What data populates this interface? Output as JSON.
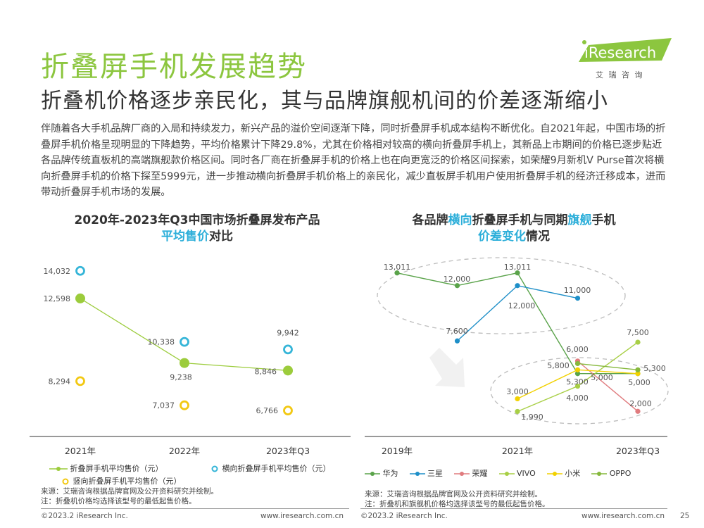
{
  "header": {
    "title": "折叠屏手机发展趋势",
    "subtitle": "折叠机价格逐步亲民化，其与品牌旗舰机间的价差逐渐缩小",
    "logo_text": "iResearch",
    "logo_sub": "艾 瑞 咨 询"
  },
  "body": {
    "paragraph": "伴随着各大手机品牌厂商的入局和持续发力，新兴产品的溢价空间逐渐下降，同时折叠屏手机成本结构不断优化。自2021年起，中国市场的折叠屏手机价格呈现明显的下降趋势，平均价格累计下降29.8%，尤其在价格相对较高的横向折叠屏手机上，其新品上市期间的价格已逐步贴近各品牌传统直板机的高端旗舰款价格区间。同时各厂商在折叠屏手机的价格上也在向更宽泛的价格区间探索，如荣耀9月新机V Purse首次将横向折叠屏手机的价格下探至5999元，进一步推动横向折叠屏手机价格上的亲民化，减少直板屏手机用户使用折叠屏手机的经济迁移成本，进而带动折叠屏手机市场的发展。"
  },
  "left_chart": {
    "title_line1": "2020年-2023年Q3中国市场折叠屏发布产品",
    "title_hl": "平均售价",
    "title_rest": "对比",
    "legend": [
      "折叠屏手机平均售价（元）",
      "横向折叠屏手机平均售价（元）",
      "竖向折叠屏手机平均售价（元）"
    ],
    "note_source": "来源：艾瑞咨询根据品牌官网及公开资料研究并绘制。",
    "note_remark": "注：折叠机价格均选择该型号的最低起售价格。"
  },
  "right_chart": {
    "title_pre": "各品牌",
    "title_hl1": "横向",
    "title_mid": "折叠屏手机与同期",
    "title_hl2": "旗舰",
    "title_post": "手机",
    "title_hl3": "价差变化",
    "title_end": "情况",
    "note_source": "来源：艾瑞咨询根据品牌官网及公开资料研究并绘制。",
    "note_remark": "注：折叠机和旗舰机价格均选择该型号的最低起售价格。"
  },
  "chart_data": [
    {
      "type": "line",
      "categories": [
        "2021年",
        "2022年",
        "2023年Q3"
      ],
      "series": [
        {
          "name": "折叠屏手机平均售价（元）",
          "color": "#9ccc3c",
          "values": [
            12598,
            9238,
            8846
          ]
        },
        {
          "name": "横向折叠屏手机平均售价（元）",
          "color": "#35b5d8",
          "values": [
            14032,
            10338,
            9942
          ]
        },
        {
          "name": "竖向折叠屏手机平均售价（元）",
          "color": "#f2c812",
          "values": [
            8294,
            7037,
            6766
          ]
        }
      ],
      "value_labels": [
        [
          "12,598",
          "9,238",
          "8,846"
        ],
        [
          "14,032",
          "10,338",
          "9,942"
        ],
        [
          "8,294",
          "7,037",
          "6,766"
        ]
      ],
      "ylim": [
        6000,
        14500
      ],
      "grid": false,
      "legend": "bottom"
    },
    {
      "type": "line",
      "categories": [
        "2019年",
        "2021年",
        "2023年Q3"
      ],
      "series": [
        {
          "name": "华为",
          "color": "#5aa34a",
          "x": [
            2019,
            2020,
            2021,
            2022,
            2023
          ],
          "values": [
            13011,
            12000,
            13011,
            5000,
            5000
          ]
        },
        {
          "name": "三星",
          "color": "#1e8fc8",
          "x": [
            2020,
            2021,
            2022
          ],
          "values": [
            7600,
            12000,
            11000
          ]
        },
        {
          "name": "荣耀",
          "color": "#e07b7e",
          "x": [
            2022,
            2023
          ],
          "values": [
            6000,
            2000
          ]
        },
        {
          "name": "VIVO",
          "color": "#a8cf45",
          "x": [
            2021,
            2022,
            2023
          ],
          "values": [
            1990,
            4000,
            7500
          ]
        },
        {
          "name": "小米",
          "color": "#f2d100",
          "x": [
            2021,
            2022,
            2023
          ],
          "values": [
            3000,
            5300,
            5000
          ]
        },
        {
          "name": "OPPO",
          "color": "#86b83c",
          "x": [
            2022,
            2023
          ],
          "values": [
            5800,
            5300
          ]
        }
      ],
      "labels": [
        "13,011",
        "12,000",
        "13,011",
        "11,000",
        "12,000",
        "7,600",
        "7,500",
        "6,000",
        "5,800",
        "5,300",
        "5,000",
        "5,300",
        "5,000",
        "3,000",
        "4,000",
        "1,990",
        "2,000"
      ],
      "legend": "bottom"
    }
  ],
  "footer": {
    "left_copyright": "©2023.2 iResearch Inc.",
    "left_url": "www.iresearch.com.cn",
    "right_copyright": "©2023.2 iResearch Inc.",
    "right_url": "www.iresearch.com.cn",
    "page": "25"
  }
}
